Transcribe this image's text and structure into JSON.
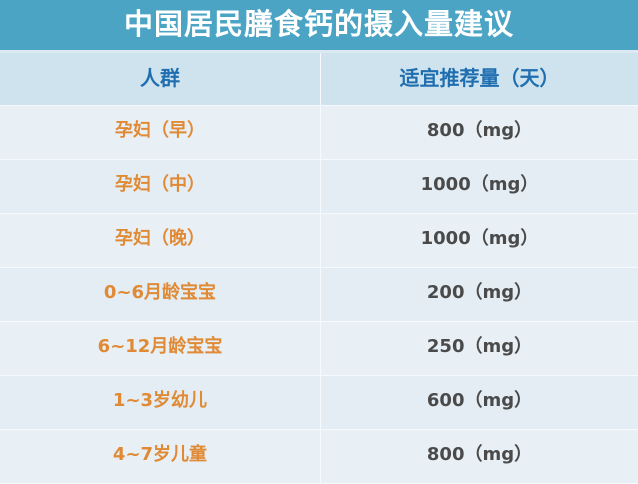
{
  "title": "中国居民膳食钙的摄入量建议",
  "headers": [
    "人群",
    "适宜推荐量（天）"
  ],
  "rows": [
    {
      "group": "孕妇（早）",
      "amount": "800（mg）"
    },
    {
      "group": "孕妇（中）",
      "amount": "1000（mg）"
    },
    {
      "group": "孕妇（晚）",
      "amount": "1000（mg）"
    },
    {
      "group": "0~6月龄宝宝",
      "amount": "200（mg）"
    },
    {
      "group": "6~12月龄宝宝",
      "amount": "250（mg）"
    },
    {
      "group": "1~3岁幼儿",
      "amount": "600（mg）"
    },
    {
      "group": "4~7岁儿童",
      "amount": "800（mg）"
    }
  ],
  "colors": {
    "title_bg": "#4ba4c4",
    "header_text": "#1f6fb0",
    "group_text": "#e08a35",
    "amount_text": "#4a4a4a"
  }
}
